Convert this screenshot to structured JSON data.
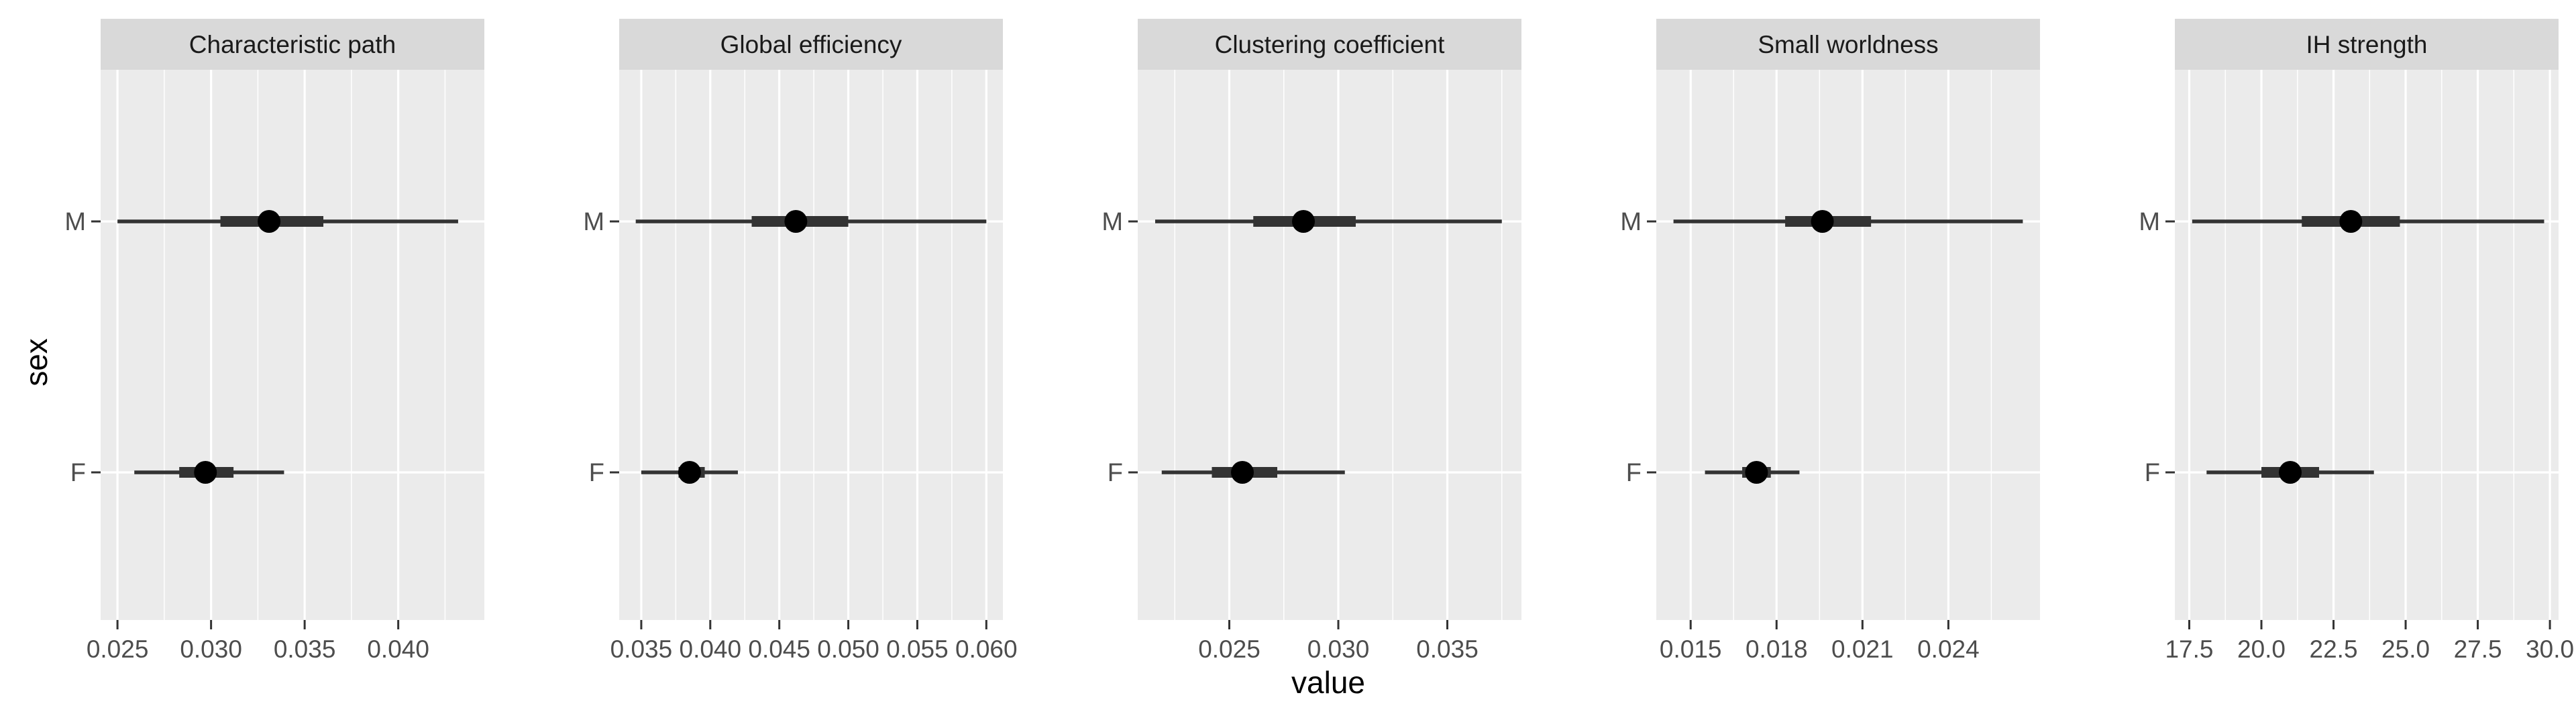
{
  "chart_data": {
    "type": "pointrange",
    "layout": "faceted-horizontal",
    "xlabel": "value",
    "ylabel": "sex",
    "categories": [
      "F",
      "M"
    ],
    "grid": true,
    "colors": {
      "panel_bg": "#EBEBEB",
      "strip_bg": "#D9D9D9",
      "grid": "#FFFFFF",
      "mark": "#000000",
      "interval": "#333333"
    },
    "facets": [
      {
        "title": "Characteristic path",
        "xlim": [
          0.0241,
          0.0446
        ],
        "ticks": [
          0.025,
          0.03,
          0.035,
          0.04
        ],
        "tick_labels": [
          "0.025",
          "0.030",
          "0.035",
          "0.040"
        ],
        "points": [
          {
            "sex": "M",
            "value": 0.0331,
            "inner": [
              0.0305,
              0.036
            ],
            "outer": [
              0.025,
              0.0432
            ]
          },
          {
            "sex": "F",
            "value": 0.0297,
            "inner": [
              0.0283,
              0.0312
            ],
            "outer": [
              0.0259,
              0.0339
            ]
          }
        ]
      },
      {
        "title": "Global efficiency",
        "xlim": [
          0.0334,
          0.0612
        ],
        "ticks": [
          0.035,
          0.04,
          0.045,
          0.05,
          0.055,
          0.06
        ],
        "tick_labels": [
          "0.035",
          "0.040",
          "0.045",
          "0.050",
          "0.055",
          "0.060"
        ],
        "points": [
          {
            "sex": "M",
            "value": 0.0462,
            "inner": [
              0.043,
              0.05
            ],
            "outer": [
              0.0346,
              0.06
            ]
          },
          {
            "sex": "F",
            "value": 0.0385,
            "inner": [
              0.0377,
              0.0396
            ],
            "outer": [
              0.035,
              0.042
            ]
          }
        ]
      },
      {
        "title": "Clustering coefficient",
        "xlim": [
          0.0208,
          0.0384
        ],
        "ticks": [
          0.025,
          0.03,
          0.035
        ],
        "tick_labels": [
          "0.025",
          "0.030",
          "0.035"
        ],
        "points": [
          {
            "sex": "M",
            "value": 0.0284,
            "inner": [
              0.0261,
              0.0308
            ],
            "outer": [
              0.0216,
              0.0375
            ]
          },
          {
            "sex": "F",
            "value": 0.0256,
            "inner": [
              0.0242,
              0.0272
            ],
            "outer": [
              0.0219,
              0.0303
            ]
          }
        ]
      },
      {
        "title": "Small worldness",
        "xlim": [
          0.0138,
          0.0272
        ],
        "ticks": [
          0.015,
          0.018,
          0.021,
          0.024
        ],
        "tick_labels": [
          "0.015",
          "0.018",
          "0.021",
          "0.024"
        ],
        "points": [
          {
            "sex": "M",
            "value": 0.0196,
            "inner": [
              0.0183,
              0.0213
            ],
            "outer": [
              0.0144,
              0.0266
            ]
          },
          {
            "sex": "F",
            "value": 0.0173,
            "inner": [
              0.0168,
              0.0178
            ],
            "outer": [
              0.0155,
              0.0188
            ]
          }
        ]
      },
      {
        "title": "IH strength",
        "xlim": [
          17.0,
          30.3
        ],
        "ticks": [
          17.5,
          20.0,
          22.5,
          25.0,
          27.5,
          30.0
        ],
        "tick_labels": [
          "17.5",
          "20.0",
          "22.5",
          "25.0",
          "27.5",
          "30.0"
        ],
        "points": [
          {
            "sex": "M",
            "value": 23.1,
            "inner": [
              21.4,
              24.8
            ],
            "outer": [
              17.6,
              29.8
            ]
          },
          {
            "sex": "F",
            "value": 21.0,
            "inner": [
              20.0,
              22.0
            ],
            "outer": [
              18.1,
              23.9
            ]
          }
        ]
      }
    ]
  }
}
